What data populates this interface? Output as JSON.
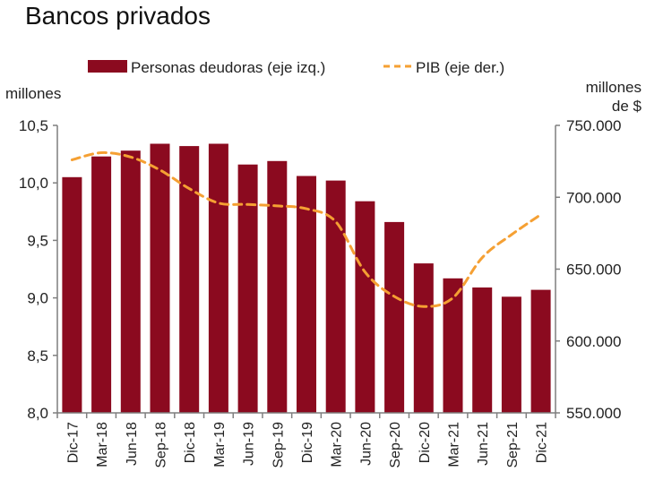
{
  "colors": {
    "bar": "#8b0a1f",
    "line": "#f5a033",
    "axis": "#7f7f7f"
  },
  "chart_data": {
    "type": "bar",
    "title": "Bancos privados",
    "categories": [
      "Dic-17",
      "Mar-18",
      "Jun-18",
      "Sep-18",
      "Dic-18",
      "Mar-19",
      "Jun-19",
      "Sep-19",
      "Dic-19",
      "Mar-20",
      "Jun-20",
      "Sep-20",
      "Dic-20",
      "Mar-21",
      "Jun-21",
      "Sep-21",
      "Dic-21"
    ],
    "series": [
      {
        "name": "Personas deudoras (eje izq.)",
        "type": "bar",
        "axis": "left",
        "values": [
          10.05,
          10.23,
          10.28,
          10.34,
          10.32,
          10.34,
          10.16,
          10.19,
          10.06,
          10.02,
          9.84,
          9.66,
          9.3,
          9.17,
          9.09,
          9.01,
          9.07
        ]
      },
      {
        "name": "PIB (eje der.)",
        "type": "line",
        "style": "dashed",
        "axis": "right",
        "values": [
          726000,
          731000,
          728000,
          719000,
          706000,
          696000,
          695000,
          694000,
          692000,
          683000,
          648000,
          631000,
          624000,
          630000,
          658000,
          674000,
          688000
        ]
      }
    ],
    "y_left": {
      "label": "millones",
      "ticks": [
        "8,0",
        "8,5",
        "9,0",
        "9,5",
        "10,0",
        "10,5"
      ],
      "ylim": [
        8.0,
        10.5
      ]
    },
    "y_right": {
      "label_line1": "millones",
      "label_line2": "de $",
      "ticks": [
        "550.000",
        "600.000",
        "650.000",
        "700.000",
        "750.000"
      ],
      "ylim": [
        550000,
        750000
      ]
    },
    "legend_position": "top"
  }
}
